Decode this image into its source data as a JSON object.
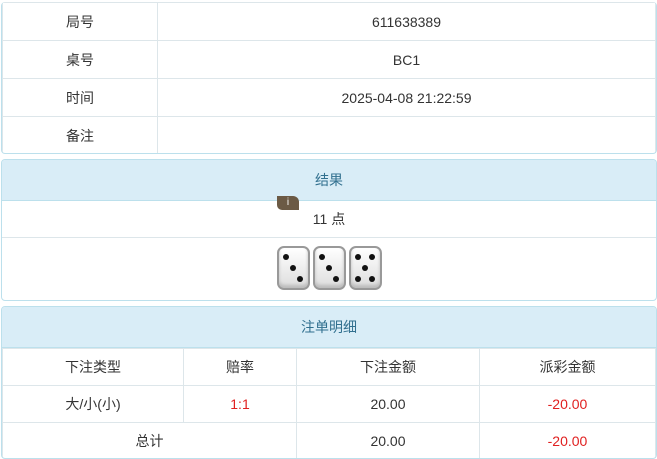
{
  "info": [
    {
      "label": "局号",
      "value": "611638389"
    },
    {
      "label": "桌号",
      "value": "BC1"
    },
    {
      "label": "时间",
      "value": "2025-04-08 21:22:59"
    },
    {
      "label": "备注",
      "value": ""
    }
  ],
  "result": {
    "title": "结果",
    "points": "11 点",
    "dice": [
      3,
      3,
      5
    ],
    "info_badge": "i"
  },
  "bets": {
    "title": "注单明细",
    "headers": [
      "下注类型",
      "赔率",
      "下注金额",
      "派彩金额"
    ],
    "rows": [
      {
        "type": "大/小(小)",
        "odds": "1:1",
        "amount": "20.00",
        "payout": "-20.00"
      }
    ],
    "total": {
      "label": "总计",
      "amount": "20.00",
      "payout": "-20.00"
    },
    "colors": {
      "negative": "#e02020",
      "odds": "#e02020"
    }
  }
}
